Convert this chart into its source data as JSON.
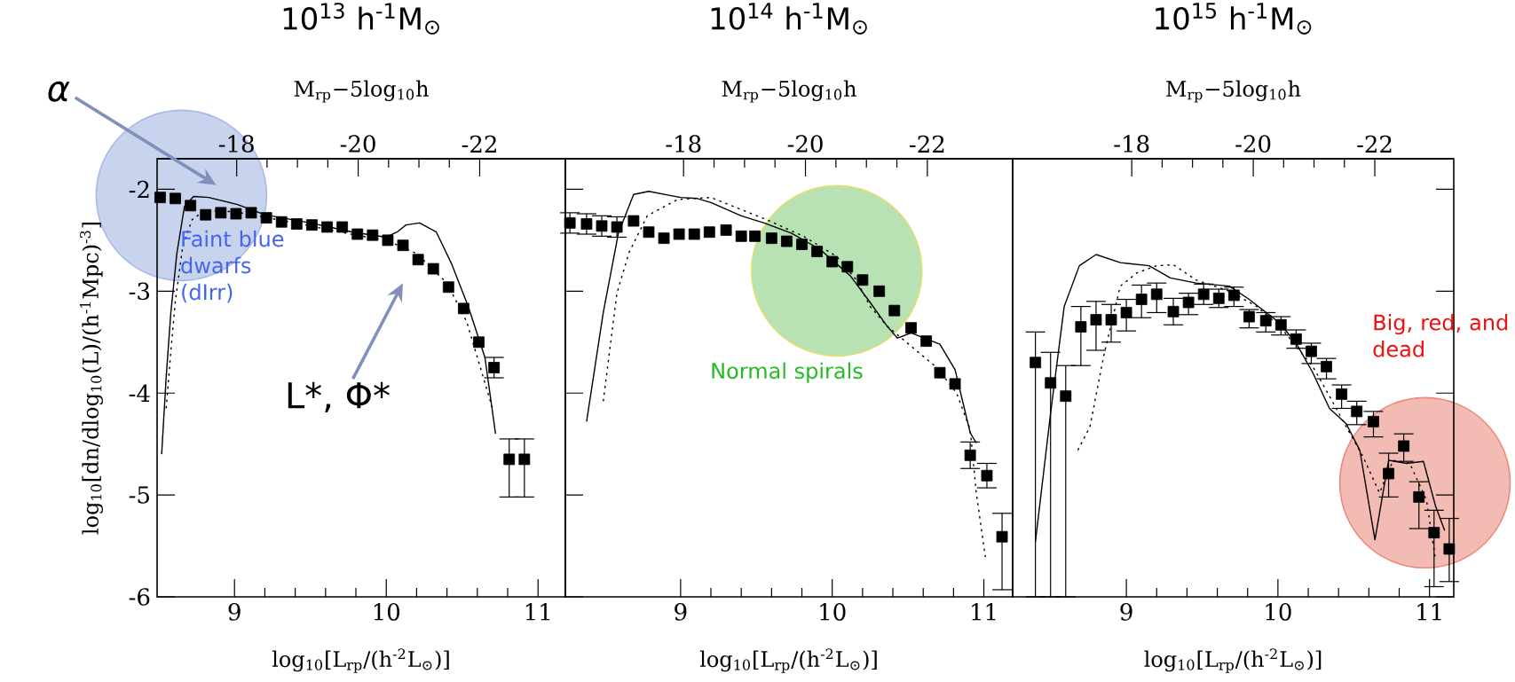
{
  "chart_data": [
    {
      "type": "scatter",
      "title": "10$^{13}$ h$^{-1}$M$_{⊙}$",
      "xlabel": "log$_{10}$[L$_{rp}$/(h$^{-2}$L$_{⊙}$)]",
      "ylabel": "log$_{10}$[dn/dlog$_{10}$(L)/(h$^{-1}$Mpc)$^{-3}$]",
      "x2label": "M$_{rp}$−5log$_{10}$h",
      "xlim": [
        8.49,
        11.18
      ],
      "ylim": [
        -6,
        -1.7
      ],
      "xticks": [
        9,
        10,
        11
      ],
      "yticks": [
        -6,
        -5,
        -4,
        -3,
        -2
      ],
      "x2lim": [
        -16.69,
        -23.41
      ],
      "x2ticks": [
        -18,
        -20,
        -22
      ],
      "series": [
        {
          "type": "scatter",
          "color": "#000000",
          "marker": "square",
          "x": [
            8.51,
            8.61,
            8.71,
            8.81,
            8.91,
            9.01,
            9.11,
            9.21,
            9.31,
            9.41,
            9.51,
            9.61,
            9.71,
            9.81,
            9.91,
            10.01,
            10.11,
            10.21,
            10.31,
            10.41,
            10.51,
            10.61,
            10.71,
            10.81,
            10.91
          ],
          "values": [
            -2.08,
            -2.09,
            -2.16,
            -2.25,
            -2.23,
            -2.24,
            -2.23,
            -2.28,
            -2.32,
            -2.34,
            -2.35,
            -2.37,
            -2.37,
            -2.44,
            -2.45,
            -2.5,
            -2.55,
            -2.69,
            -2.78,
            -2.96,
            -3.17,
            -3.5,
            -3.75,
            -4.65,
            -4.65
          ],
          "errors": [
            null,
            null,
            null,
            null,
            null,
            null,
            null,
            null,
            null,
            null,
            null,
            null,
            null,
            null,
            null,
            null,
            null,
            null,
            null,
            null,
            null,
            null,
            0.1,
            [
              -5.02,
              -4.45
            ],
            [
              -5.02,
              -4.45
            ]
          ]
        },
        {
          "type": "line",
          "color": "#000000",
          "line_style": "solid",
          "marker": "none",
          "x": [
            8.52,
            8.55,
            8.58,
            8.62,
            8.67,
            8.73,
            8.83,
            9.02,
            9.2,
            9.5,
            9.78,
            10.0,
            10.07,
            10.13,
            10.22,
            10.33,
            10.43,
            10.54,
            10.65,
            10.72
          ],
          "values": [
            -4.6,
            -3.84,
            -3.22,
            -2.63,
            -2.17,
            -2.07,
            -2.08,
            -2.15,
            -2.25,
            -2.33,
            -2.42,
            -2.47,
            -2.42,
            -2.35,
            -2.33,
            -2.42,
            -2.73,
            -3.15,
            -3.65,
            -4.4
          ]
        },
        {
          "type": "line",
          "color": "#000000",
          "line_style": "dotted",
          "marker": "none",
          "x": [
            8.55,
            8.58,
            8.61,
            8.66,
            8.72,
            8.8,
            9.0,
            9.4,
            9.8,
            10.0,
            10.2,
            10.4,
            10.53,
            10.63,
            10.7
          ],
          "values": [
            -4.15,
            -3.6,
            -3.1,
            -2.55,
            -2.3,
            -2.21,
            -2.22,
            -2.33,
            -2.45,
            -2.5,
            -2.63,
            -2.92,
            -3.3,
            -3.8,
            -4.15
          ]
        }
      ],
      "annotations": [
        "α",
        "Faint blue dwarfs (dIrr)",
        "L*, Φ*"
      ]
    },
    {
      "type": "scatter",
      "title": "10$^{14}$ h$^{-1}$M$_{⊙}$",
      "xlabel": "log$_{10}$[L$_{rp}$/(h$^{-2}$L$_{⊙}$)]",
      "x2label": "M$_{rp}$−5log$_{10}$h",
      "xlim": [
        8.24,
        11.19
      ],
      "ylim": [
        -6,
        -1.7
      ],
      "tick_labels": "x",
      "xticks": [
        9,
        10,
        11
      ],
      "yticks": [
        -6,
        -5,
        -4,
        -3,
        -2
      ],
      "x2lim": [
        -16.06,
        -23.4
      ],
      "x2ticks": [
        -18,
        -20,
        -22
      ],
      "series": [
        {
          "type": "scatter",
          "color": "#000000",
          "marker": "square",
          "x": [
            8.27,
            8.38,
            8.48,
            8.58,
            8.69,
            8.79,
            8.89,
            8.99,
            9.09,
            9.19,
            9.3,
            9.4,
            9.49,
            9.6,
            9.7,
            9.8,
            9.9,
            10.0,
            10.1,
            10.2,
            10.31,
            10.41,
            10.52,
            10.62,
            10.71,
            10.81,
            10.91,
            11.02,
            11.12
          ],
          "values": [
            -2.33,
            -2.34,
            -2.36,
            -2.37,
            -2.31,
            -2.42,
            -2.48,
            -2.44,
            -2.44,
            -2.42,
            -2.4,
            -2.46,
            -2.46,
            -2.48,
            -2.51,
            -2.54,
            -2.61,
            -2.71,
            -2.76,
            -2.89,
            -3.0,
            -3.19,
            -3.36,
            -3.49,
            -3.8,
            -3.91,
            -4.61,
            -4.81,
            -5.41
          ],
          "errors": [
            0.1,
            0.1,
            0.1,
            0.1,
            null,
            null,
            null,
            null,
            null,
            null,
            null,
            null,
            null,
            null,
            null,
            null,
            null,
            null,
            null,
            null,
            null,
            null,
            null,
            null,
            null,
            null,
            0.13,
            0.12,
            [
              -5.93,
              -5.18
            ]
          ]
        },
        {
          "type": "line",
          "color": "#000000",
          "line_style": "solid",
          "marker": "none",
          "x": [
            8.38,
            8.49,
            8.59,
            8.69,
            8.79,
            9.0,
            9.11,
            9.2,
            9.4,
            9.55,
            9.73,
            9.92,
            10.12,
            10.25,
            10.36,
            10.43,
            10.52,
            10.71,
            10.81,
            10.91,
            10.95
          ],
          "values": [
            -4.28,
            -3.21,
            -2.43,
            -2.05,
            -2.02,
            -2.08,
            -2.09,
            -2.13,
            -2.26,
            -2.33,
            -2.43,
            -2.59,
            -2.85,
            -3.11,
            -3.34,
            -3.46,
            -3.41,
            -3.52,
            -3.77,
            -4.39,
            -4.49
          ]
        },
        {
          "type": "line",
          "color": "#000000",
          "line_style": "dotted",
          "marker": "none",
          "x": [
            8.49,
            8.58,
            8.66,
            8.78,
            8.98,
            9.2,
            9.57,
            9.81,
            10.03,
            10.16,
            10.25,
            10.36,
            10.52,
            10.69,
            10.82,
            10.91,
            10.95,
            11.01
          ],
          "values": [
            -4.08,
            -3.02,
            -2.62,
            -2.26,
            -2.1,
            -2.08,
            -2.3,
            -2.46,
            -2.66,
            -2.89,
            -3.15,
            -3.34,
            -3.54,
            -3.75,
            -4.0,
            -4.36,
            -4.98,
            -5.61
          ]
        }
      ],
      "annotations": [
        "Normal spirals"
      ]
    },
    {
      "type": "scatter",
      "title": "10$^{15}$ h$^{-1}$M$_{⊙}$",
      "xlabel": "log$_{10}$[L$_{rp}$/(h$^{-2}$L$_{⊙}$)]",
      "x2label": "M$_{rp}$−5log$_{10}$h",
      "xlim": [
        8.25,
        11.16
      ],
      "ylim": [
        -6,
        -1.7
      ],
      "tick_labels": "x",
      "xticks": [
        9,
        10,
        11
      ],
      "yticks": [
        -6,
        -5,
        -4,
        -3,
        -2
      ],
      "x2lim": [
        -16.04,
        -23.3
      ],
      "x2ticks": [
        -18,
        -20,
        -22
      ],
      "series": [
        {
          "type": "scatter",
          "color": "#000000",
          "marker": "square",
          "x": [
            8.4,
            8.5,
            8.6,
            8.7,
            8.8,
            8.9,
            9.0,
            9.1,
            9.2,
            9.31,
            9.41,
            9.51,
            9.61,
            9.71,
            9.81,
            9.92,
            10.02,
            10.12,
            10.22,
            10.32,
            10.42,
            10.52,
            10.63,
            10.73,
            10.83,
            10.93,
            11.03,
            11.13
          ],
          "values": [
            -3.7,
            -3.9,
            -4.03,
            -3.35,
            -3.28,
            -3.28,
            -3.21,
            -3.08,
            -3.03,
            -3.2,
            -3.11,
            -3.03,
            -3.07,
            -3.04,
            -3.25,
            -3.29,
            -3.33,
            -3.47,
            -3.59,
            -3.74,
            -4.01,
            -4.18,
            -4.28,
            -4.79,
            -4.52,
            -5.02,
            -5.37,
            -5.53
          ],
          "errors": [
            [
              -6,
              -3.4
            ],
            [
              -6,
              -3.6
            ],
            [
              -6,
              -3.73
            ],
            [
              -3.73,
              -3.15
            ],
            [
              -3.58,
              -3.1
            ],
            [
              -3.5,
              -3.13
            ],
            [
              -3.39,
              -3.08
            ],
            [
              -3.26,
              -2.94
            ],
            [
              -3.21,
              -2.92
            ],
            [
              -3.33,
              -3.07
            ],
            [
              -3.23,
              -3.02
            ],
            [
              -3.13,
              -2.93
            ],
            [
              -3.16,
              -2.98
            ],
            [
              -3.15,
              -2.96
            ],
            [
              -3.36,
              -3.18
            ],
            [
              -3.4,
              -3.21
            ],
            [
              -3.43,
              -3.25
            ],
            [
              -3.56,
              -3.38
            ],
            [
              -3.71,
              -3.51
            ],
            [
              -3.86,
              -3.66
            ],
            [
              -4.15,
              -3.92
            ],
            [
              -4.31,
              -4.08
            ],
            [
              -4.43,
              -4.18
            ],
            [
              -5.02,
              -4.59
            ],
            [
              -4.67,
              -4.4
            ],
            [
              -5.33,
              -4.87
            ],
            [
              -5.9,
              -5.15
            ],
            [
              -5.85,
              -5.23
            ]
          ]
        },
        {
          "type": "line",
          "color": "#000000",
          "line_style": "solid",
          "marker": "none",
          "x": [
            8.4,
            8.5,
            8.59,
            8.69,
            8.8,
            8.96,
            9.15,
            9.29,
            9.46,
            9.68,
            9.81,
            10.01,
            10.12,
            10.23,
            10.34,
            10.45,
            10.54,
            10.64,
            10.73,
            10.85,
            10.96,
            11.04,
            11.1
          ],
          "values": [
            -5.46,
            -4.2,
            -3.15,
            -2.75,
            -2.64,
            -2.72,
            -2.75,
            -2.87,
            -2.92,
            -2.95,
            -3.08,
            -3.31,
            -3.51,
            -3.8,
            -4.15,
            -4.3,
            -4.56,
            -5.44,
            -4.66,
            -4.69,
            -4.67,
            -5.11,
            -5.35
          ]
        },
        {
          "type": "line",
          "color": "#000000",
          "line_style": "dotted",
          "marker": "none",
          "x": [
            8.68,
            8.76,
            8.85,
            8.96,
            9.07,
            9.2,
            9.31,
            9.46,
            9.68,
            9.86,
            10.01,
            10.23,
            10.34,
            10.45,
            10.56,
            10.67,
            10.76,
            10.87,
            10.98,
            11.04
          ],
          "values": [
            -4.56,
            -4.33,
            -3.64,
            -2.95,
            -2.82,
            -2.75,
            -2.74,
            -2.89,
            -3.0,
            -3.15,
            -3.34,
            -3.74,
            -4.03,
            -4.33,
            -4.62,
            -4.98,
            -4.66,
            -4.69,
            -5.05,
            -5.64
          ]
        }
      ],
      "annotations": [
        "Big, red, and dead"
      ]
    }
  ]
}
